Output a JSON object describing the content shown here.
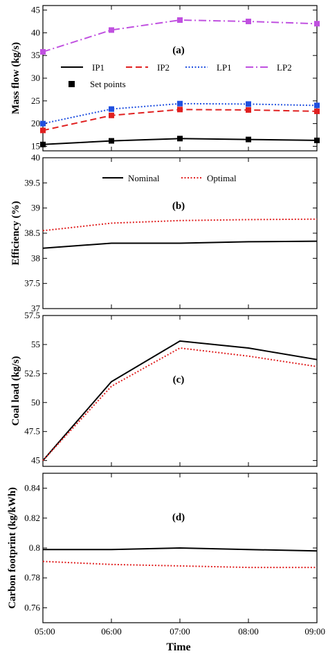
{
  "chart_data": [
    {
      "type": "line",
      "panel_label": "(a)",
      "ylabel": "Mass flow (kg/s)",
      "ylim": [
        14,
        46
      ],
      "yticks": [
        15,
        20,
        25,
        30,
        35,
        40,
        45
      ],
      "x": [
        "05:00",
        "06:00",
        "07:00",
        "08:00",
        "09:00"
      ],
      "series": [
        {
          "name": "IP1",
          "color": "#000000",
          "dash": "solid",
          "values": [
            15.4,
            16.2,
            16.7,
            16.5,
            16.3
          ]
        },
        {
          "name": "IP2",
          "color": "#e02020",
          "dash": "dashed",
          "values": [
            18.5,
            21.8,
            23.1,
            23.0,
            22.7
          ]
        },
        {
          "name": "LP1",
          "color": "#2050e0",
          "dash": "dotted",
          "values": [
            20.0,
            23.2,
            24.4,
            24.3,
            24.0
          ]
        },
        {
          "name": "LP2",
          "color": "#c050e0",
          "dash": "dashdot",
          "values": [
            35.8,
            40.6,
            42.8,
            42.5,
            42.0
          ]
        }
      ],
      "marker_legend": "Set points",
      "legend_position": "middle"
    },
    {
      "type": "line",
      "panel_label": "(b)",
      "ylabel": "Efficiency (%)",
      "ylim": [
        37,
        40
      ],
      "yticks": [
        "37",
        "37.5",
        "38",
        "38.5",
        "39",
        "39.5",
        "40"
      ],
      "x": [
        "05:00",
        "06:00",
        "07:00",
        "08:00",
        "09:00"
      ],
      "series": [
        {
          "name": "Nominal",
          "color": "#000000",
          "dash": "solid",
          "values": [
            38.2,
            38.3,
            38.3,
            38.33,
            38.34
          ]
        },
        {
          "name": "Optimal",
          "color": "#e02020",
          "dash": "dotted",
          "values": [
            38.55,
            38.7,
            38.75,
            38.77,
            38.78
          ]
        }
      ],
      "legend_position": "top"
    },
    {
      "type": "line",
      "panel_label": "(c)",
      "ylabel": "Coal load (kg/s)",
      "ylim": [
        44.5,
        57.5
      ],
      "yticks": [
        "45",
        "47.5",
        "50",
        "52.5",
        "55",
        "57.5"
      ],
      "x": [
        "05:00",
        "06:00",
        "07:00",
        "08:00",
        "09:00"
      ],
      "series": [
        {
          "name": "Nominal",
          "color": "#000000",
          "dash": "solid",
          "values": [
            45.0,
            51.8,
            55.3,
            54.7,
            53.7
          ]
        },
        {
          "name": "Optimal",
          "color": "#e02020",
          "dash": "dotted",
          "values": [
            45.0,
            51.4,
            54.7,
            54.0,
            53.1
          ]
        }
      ]
    },
    {
      "type": "line",
      "panel_label": "(d)",
      "ylabel": "Carbon footprint (kg/kWh)",
      "xlabel": "Time",
      "ylim": [
        0.75,
        0.85
      ],
      "yticks": [
        "0.76",
        "0.78",
        "0.8",
        "0.82",
        "0.84"
      ],
      "x": [
        "05:00",
        "06:00",
        "07:00",
        "08:00",
        "09:00"
      ],
      "series": [
        {
          "name": "Nominal",
          "color": "#000000",
          "dash": "solid",
          "values": [
            0.799,
            0.799,
            0.8,
            0.799,
            0.798
          ]
        },
        {
          "name": "Optimal",
          "color": "#e02020",
          "dash": "dotted",
          "values": [
            0.791,
            0.789,
            0.788,
            0.787,
            0.787
          ]
        }
      ]
    }
  ]
}
